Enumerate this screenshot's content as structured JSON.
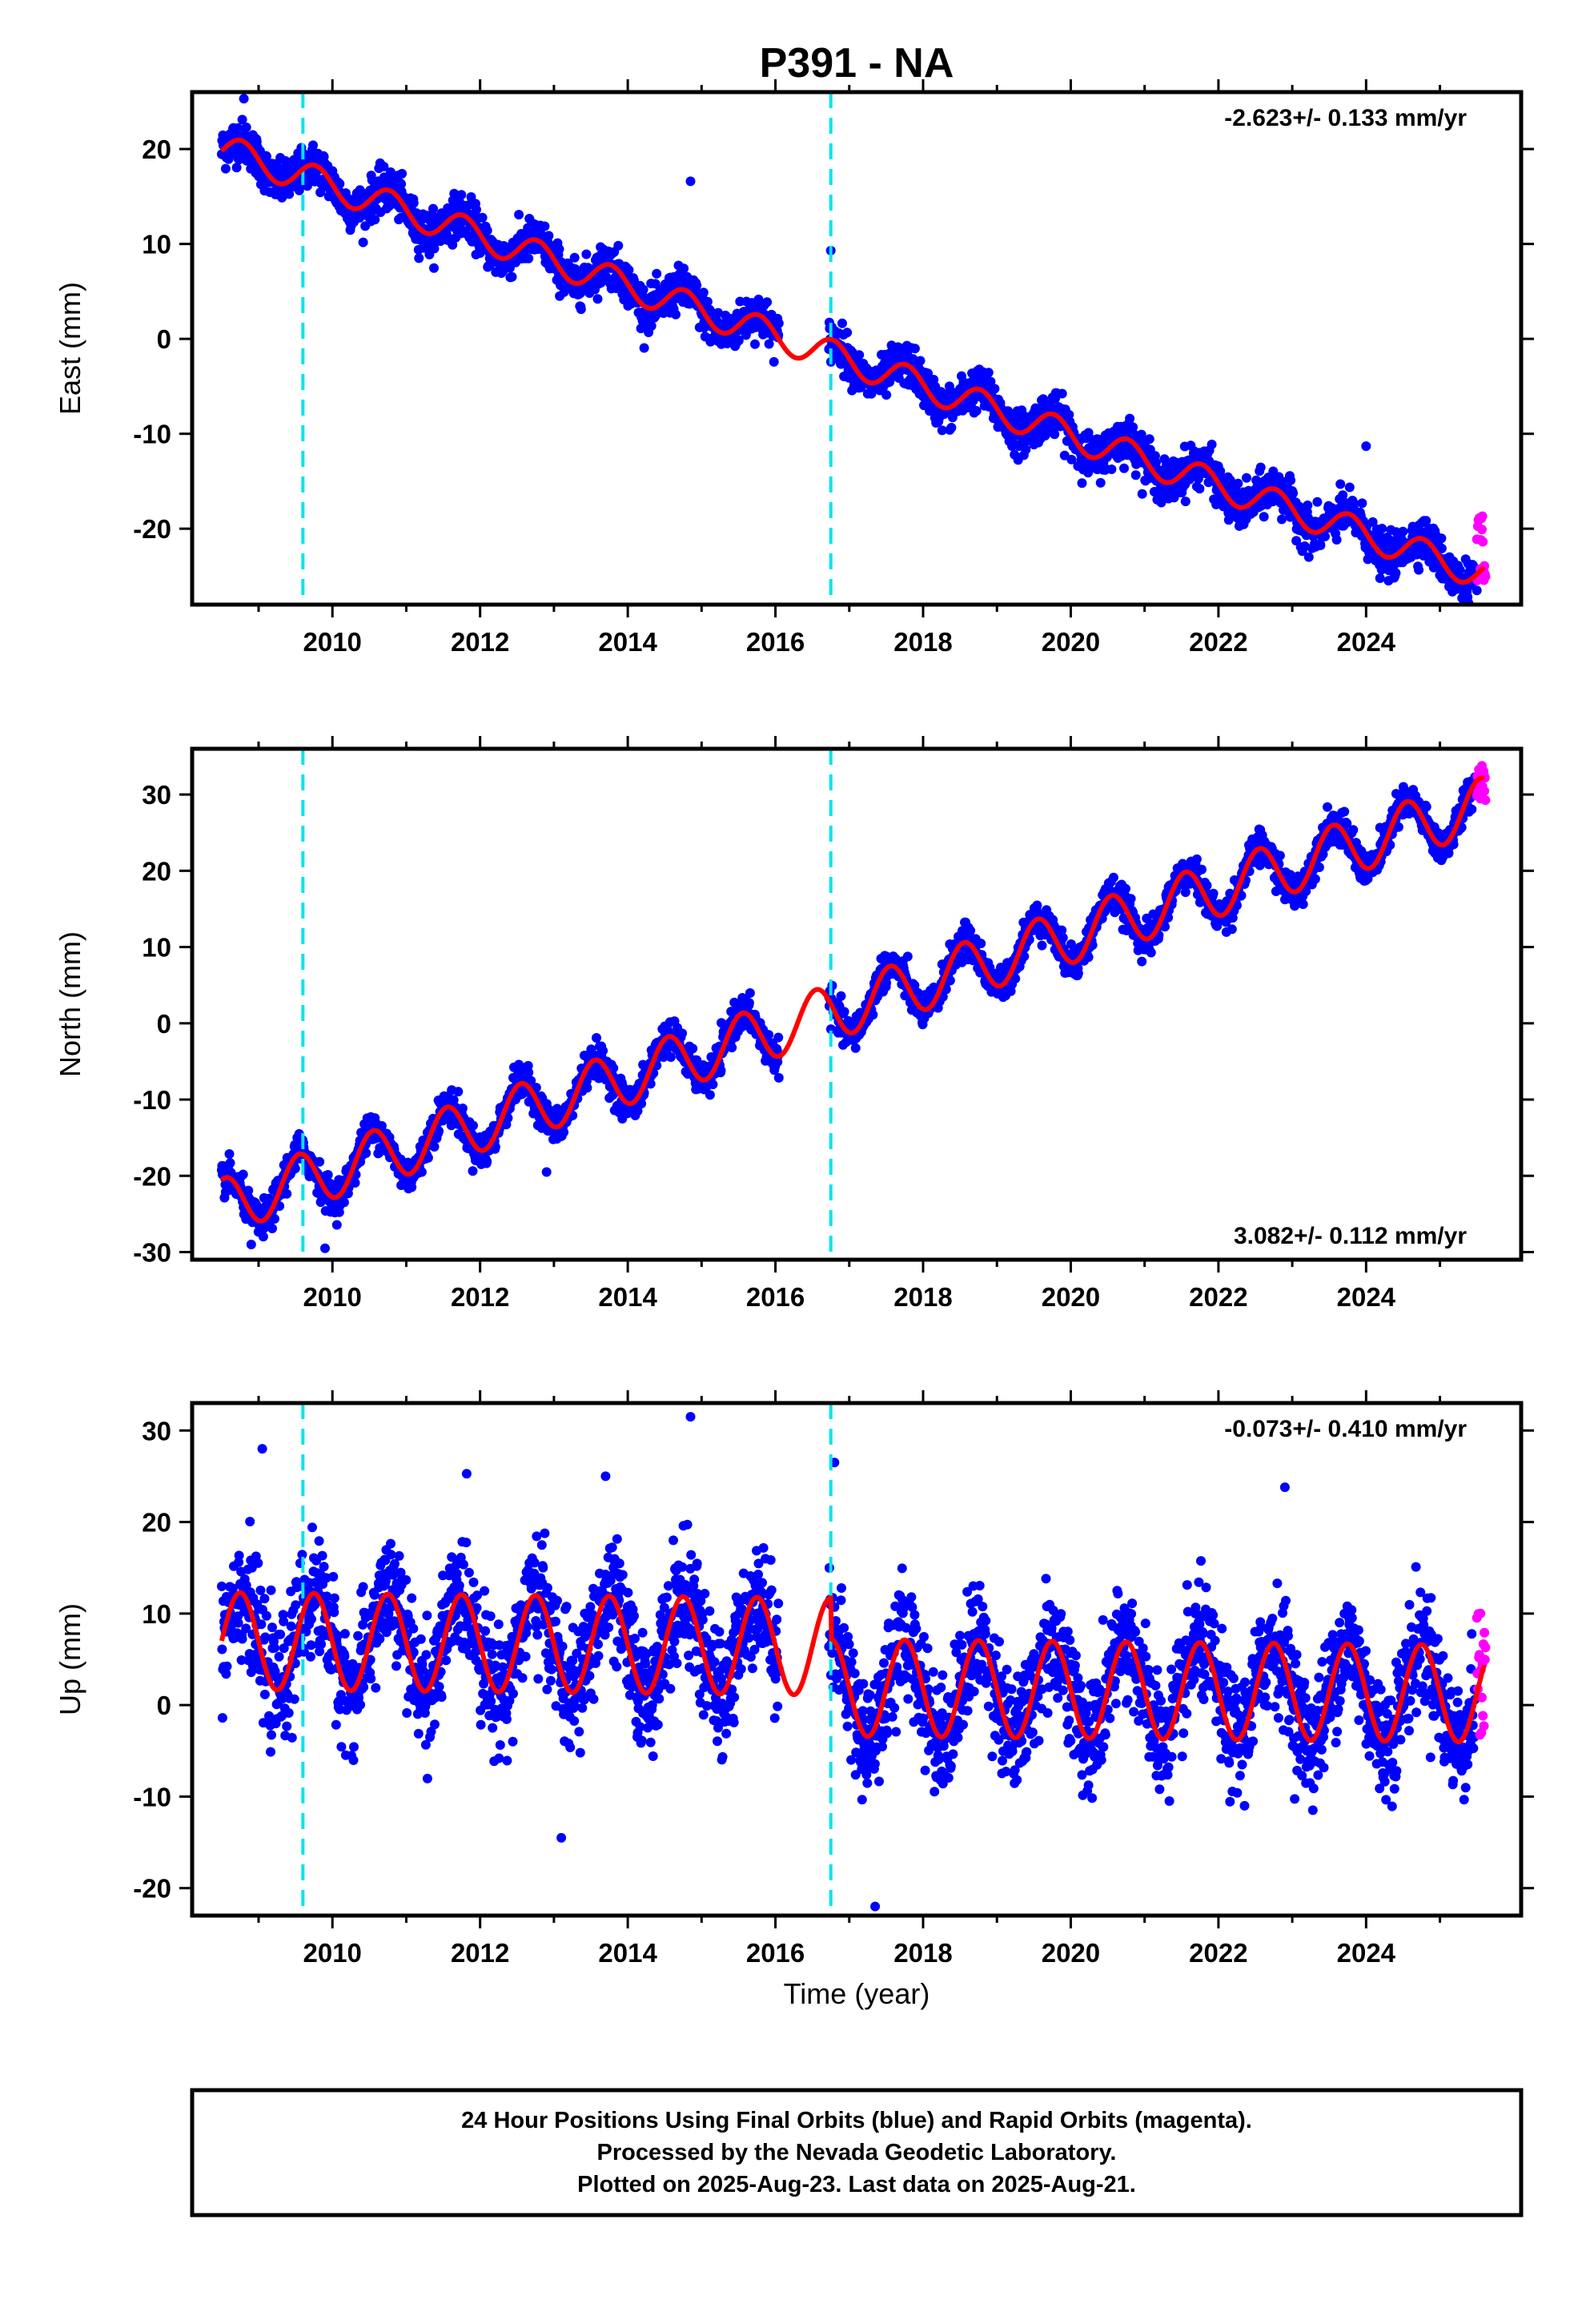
{
  "title": "P391 - NA",
  "caption": [
    "24 Hour Positions Using Final Orbits (blue) and Rapid Orbits (magenta).",
    "Processed by the Nevada Geodetic Laboratory.",
    "Plotted on 2025-Aug-23. Last data on 2025-Aug-21."
  ],
  "colors": {
    "final_orbits": "#0000ff",
    "rapid_orbits": "#ff00ff",
    "model": "#ff0000",
    "equipment_change": "#00e5ee"
  },
  "chart_data": [
    {
      "type": "scatter",
      "name": "east",
      "ylabel": "East (mm)",
      "xlabel": "",
      "rate_text": "-2.623+/- 0.133 mm/yr",
      "rate_position": "top-right",
      "xlim": [
        2008.1,
        2026.1
      ],
      "ylim": [
        -28,
        26
      ],
      "xticks": [
        2010,
        2012,
        2014,
        2016,
        2018,
        2020,
        2022,
        2024
      ],
      "yticks": [
        -20,
        -10,
        0,
        10,
        20
      ],
      "equipment_changes": [
        2009.6,
        2016.75
      ],
      "model": {
        "start": 2008.5,
        "end": 2025.6,
        "value_at_start": 20.0,
        "rate": -2.623,
        "annual_amplitude": 1.6,
        "annual_peak": 0.77,
        "offsets": []
      },
      "observations": {
        "start": 2008.5,
        "end": 2025.48,
        "scatter": 1.1,
        "extremes": [
          [
            2008.8,
            25.3
          ],
          [
            2014.85,
            16.6
          ],
          [
            2016.75,
            9.3
          ],
          [
            2024.0,
            -11.3
          ],
          [
            2025.5,
            -26.5
          ]
        ]
      },
      "rapid": {
        "start": 2025.5,
        "end": 2025.62,
        "range": [
          -25.5,
          -18.5
        ]
      }
    },
    {
      "type": "scatter",
      "name": "north",
      "ylabel": "North (mm)",
      "xlabel": "",
      "rate_text": "3.082+/- 0.112 mm/yr",
      "rate_position": "bottom-right",
      "xlim": [
        2008.1,
        2026.1
      ],
      "ylim": [
        -31,
        36
      ],
      "xticks": [
        2010,
        2012,
        2014,
        2016,
        2018,
        2020,
        2022,
        2024
      ],
      "yticks": [
        -30,
        -20,
        -10,
        0,
        10,
        20,
        30
      ],
      "equipment_changes": [
        2009.6,
        2016.75
      ],
      "model": {
        "start": 2008.5,
        "end": 2025.6,
        "value_at_start": -24.0,
        "rate": 3.082,
        "annual_amplitude": 3.6,
        "annual_peak": 0.55,
        "offsets": []
      },
      "observations": {
        "start": 2008.5,
        "end": 2025.48,
        "scatter": 1.1,
        "extremes": [
          [
            2008.9,
            -29.0
          ],
          [
            2009.55,
            -14.5
          ],
          [
            2009.9,
            -29.5
          ],
          [
            2012.9,
            -19.5
          ]
        ]
      },
      "rapid": {
        "start": 2025.5,
        "end": 2025.62,
        "range": [
          29.0,
          34.5
        ]
      }
    },
    {
      "type": "scatter",
      "name": "up",
      "ylabel": "Up (mm)",
      "xlabel": "Time (year)",
      "rate_text": "-0.073+/- 0.410 mm/yr",
      "rate_position": "top-right",
      "xlim": [
        2008.1,
        2026.1
      ],
      "ylim": [
        -23,
        33
      ],
      "xticks": [
        2010,
        2012,
        2014,
        2016,
        2018,
        2020,
        2022,
        2024
      ],
      "yticks": [
        -20,
        -10,
        0,
        10,
        20,
        30
      ],
      "equipment_changes": [
        2009.6,
        2016.75
      ],
      "model": {
        "start": 2008.5,
        "end": 2025.6,
        "value_at_start": 7.0,
        "rate": -0.073,
        "annual_amplitude": 5.3,
        "annual_peak": 0.75,
        "offsets": [
          [
            2016.75,
            -4.5
          ]
        ]
      },
      "observations": {
        "start": 2008.5,
        "end": 2025.48,
        "scatter": 3.2,
        "extremes": [
          [
            2009.05,
            28.0
          ],
          [
            2014.85,
            31.5
          ],
          [
            2013.7,
            25.0
          ],
          [
            2022.9,
            23.8
          ],
          [
            2016.8,
            26.5
          ],
          [
            2017.35,
            -22.0
          ],
          [
            2013.1,
            -14.5
          ]
        ]
      },
      "rapid": {
        "start": 2025.5,
        "end": 2025.62,
        "range": [
          -4.0,
          10.5
        ]
      }
    }
  ]
}
